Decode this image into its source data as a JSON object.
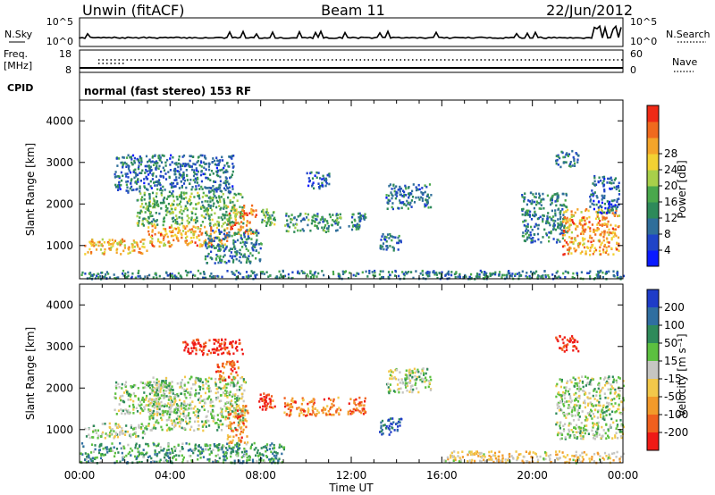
{
  "header": {
    "station": "Unwin (fitACF)",
    "beam": "Beam 11",
    "date": "22/Jun/2012"
  },
  "nsky_panel": {
    "left_label": "N.Sky",
    "left_ticks": [
      "10^5",
      "10^0"
    ],
    "right_label": "N.Search",
    "right_ticks": [
      "10^5",
      "10^0"
    ]
  },
  "freq_panel": {
    "left_label_1": "Freq.",
    "left_label_2": "[MHz]",
    "left_ticks": [
      "18",
      "8"
    ],
    "right_label": "Nave",
    "right_ticks": [
      "60",
      "0"
    ]
  },
  "cpid_panel": {
    "label": "CPID",
    "text": "normal (fast stereo) 153 RF"
  },
  "chart_data": [
    {
      "type": "heatmap",
      "name": "power-panel",
      "ylabel": "Slant Range [km]",
      "yticks": [
        "1000",
        "2000",
        "3000",
        "4000"
      ],
      "ylim": [
        200,
        4500
      ],
      "xlim": [
        0,
        24
      ],
      "colorbar": {
        "label": "Power [dB]",
        "ticks": [
          "4",
          "8",
          "12",
          "16",
          "20",
          "24",
          "28"
        ],
        "colors": [
          "#0a1aff",
          "#1f44c8",
          "#2f6e9a",
          "#2e8a5a",
          "#4aa84c",
          "#a8d04a",
          "#f2d233",
          "#f4a52a",
          "#f06a1e",
          "#ef2a16"
        ]
      },
      "regions": [
        {
          "t0": 0.2,
          "t1": 3.0,
          "r0": 820,
          "r1": 1180,
          "level": 0.7
        },
        {
          "t0": 3.0,
          "t1": 6.5,
          "r0": 1000,
          "r1": 1500,
          "level": 0.75
        },
        {
          "t0": 6.5,
          "t1": 7.8,
          "r0": 1300,
          "r1": 2000,
          "level": 0.8
        },
        {
          "t0": 2.5,
          "t1": 7.2,
          "r0": 1500,
          "r1": 2300,
          "level": 0.45
        },
        {
          "t0": 1.5,
          "t1": 6.8,
          "r0": 2300,
          "r1": 3200,
          "level": 0.25
        },
        {
          "t0": 5.5,
          "t1": 8.0,
          "r0": 600,
          "r1": 1400,
          "level": 0.3
        },
        {
          "t0": 8.0,
          "t1": 8.6,
          "r0": 1500,
          "r1": 1900,
          "level": 0.45
        },
        {
          "t0": 9.0,
          "t1": 11.5,
          "r0": 1350,
          "r1": 1800,
          "level": 0.35
        },
        {
          "t0": 11.8,
          "t1": 12.6,
          "r0": 1400,
          "r1": 1800,
          "level": 0.3
        },
        {
          "t0": 13.2,
          "t1": 14.2,
          "r0": 900,
          "r1": 1300,
          "level": 0.25
        },
        {
          "t0": 10.0,
          "t1": 11.0,
          "r0": 2400,
          "r1": 2800,
          "level": 0.2
        },
        {
          "t0": 13.5,
          "t1": 15.5,
          "r0": 1900,
          "r1": 2500,
          "level": 0.25
        },
        {
          "t0": 19.5,
          "t1": 21.5,
          "r0": 1100,
          "r1": 2300,
          "level": 0.3
        },
        {
          "t0": 21.3,
          "t1": 23.8,
          "r0": 800,
          "r1": 1900,
          "level": 0.75
        },
        {
          "t0": 21.0,
          "t1": 22.0,
          "r0": 2900,
          "r1": 3300,
          "level": 0.3
        },
        {
          "t0": 22.5,
          "t1": 23.8,
          "r0": 1800,
          "r1": 2700,
          "level": 0.2
        },
        {
          "t0": 0.0,
          "t1": 24.0,
          "r0": 220,
          "r1": 420,
          "level": 0.3
        }
      ]
    },
    {
      "type": "heatmap",
      "name": "velocity-panel",
      "ylabel": "Slant Range [km]",
      "yticks": [
        "1000",
        "2000",
        "3000",
        "4000"
      ],
      "ylim": [
        200,
        4500
      ],
      "xlim": [
        0,
        24
      ],
      "xticks": [
        "00:00",
        "04:00",
        "08:00",
        "12:00",
        "16:00",
        "20:00",
        "00:00"
      ],
      "xlabel": "Time UT",
      "colorbar": {
        "label": "Velocity [m s⁻¹]",
        "ticks": [
          "200",
          "100",
          "50",
          "15",
          "-15",
          "-50",
          "-100",
          "-200"
        ],
        "colors": [
          "#1e3cc8",
          "#2f6ea0",
          "#2e8a5a",
          "#5cc040",
          "#c6c6c2",
          "#f2c84a",
          "#f29a2a",
          "#f0601e",
          "#ef1a16"
        ]
      },
      "regions": [
        {
          "t0": 0.2,
          "t1": 3.0,
          "r0": 820,
          "r1": 1180,
          "level": 0.45
        },
        {
          "t0": 3.0,
          "t1": 7.3,
          "r0": 1000,
          "r1": 2300,
          "level": 0.45
        },
        {
          "t0": 1.5,
          "t1": 4.0,
          "r0": 1400,
          "r1": 2200,
          "level": 0.45
        },
        {
          "t0": 4.5,
          "t1": 7.2,
          "r0": 2800,
          "r1": 3200,
          "level": 0.95
        },
        {
          "t0": 6.0,
          "t1": 7.0,
          "r0": 2200,
          "r1": 2700,
          "level": 0.85
        },
        {
          "t0": 6.5,
          "t1": 7.4,
          "r0": 700,
          "r1": 1600,
          "level": 0.75
        },
        {
          "t0": 7.9,
          "t1": 8.6,
          "r0": 1500,
          "r1": 1900,
          "level": 0.9
        },
        {
          "t0": 9.0,
          "t1": 11.5,
          "r0": 1350,
          "r1": 1800,
          "level": 0.75
        },
        {
          "t0": 11.8,
          "t1": 12.6,
          "r0": 1400,
          "r1": 1800,
          "level": 0.85
        },
        {
          "t0": 13.2,
          "t1": 14.2,
          "r0": 900,
          "r1": 1300,
          "level": 0.15
        },
        {
          "t0": 13.5,
          "t1": 15.5,
          "r0": 1900,
          "r1": 2500,
          "level": 0.45
        },
        {
          "t0": 21.0,
          "t1": 24.0,
          "r0": 800,
          "r1": 2300,
          "level": 0.45
        },
        {
          "t0": 21.0,
          "t1": 22.0,
          "r0": 2900,
          "r1": 3300,
          "level": 0.95
        },
        {
          "t0": 0.0,
          "t1": 9.0,
          "r0": 220,
          "r1": 700,
          "level": 0.3
        },
        {
          "t0": 16.0,
          "t1": 24.0,
          "r0": 220,
          "r1": 500,
          "level": 0.6
        }
      ]
    }
  ]
}
